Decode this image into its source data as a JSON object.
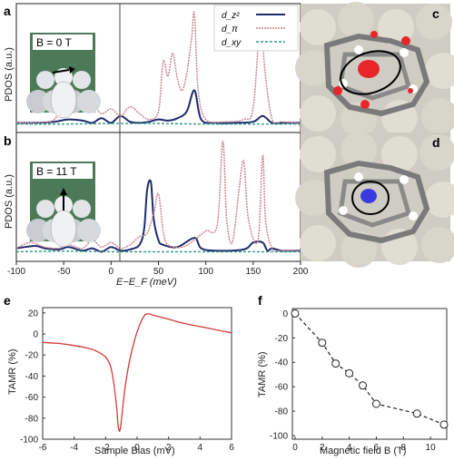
{
  "panel_labels": {
    "a": "a",
    "b": "b",
    "c": "c",
    "d": "d",
    "e": "e",
    "f": "f"
  },
  "colors": {
    "dz2": "#1f2a6e",
    "dpi": "#c8808a",
    "dxy": "#2a9a8a",
    "tamr_line": "#d23a3a",
    "spin_up": "#e8262a",
    "spin_down": "#3a3ae0",
    "inset_bg": "#4c7a58"
  },
  "icons": {
    "tip_inset": "stm-tip-icon",
    "molecule": "porphyrin-molecule-image"
  },
  "panel_a": {
    "field_label": "B = 0 T"
  },
  "panel_b": {
    "field_label": "B = 11 T"
  },
  "pdos": {
    "ylabel": "PDOS (a.u.)",
    "xlabel": "E−E_F (meV)",
    "xlim": [
      -100,
      200
    ],
    "xticks": [
      -100,
      -50,
      0,
      50,
      100,
      150,
      200
    ],
    "fermi_line_x": 38,
    "legend": [
      "d_z²",
      "d_π",
      "d_xy"
    ]
  },
  "chart_data": [
    {
      "type": "line",
      "panel": "a",
      "xlabel": "",
      "ylabel": "PDOS (a.u.)",
      "xlim": [
        -100,
        200
      ],
      "series": [
        {
          "name": "d_z²",
          "x": [
            -100,
            -80,
            -60,
            -45,
            -30,
            -20,
            -10,
            0,
            10,
            20,
            30,
            40,
            50,
            60,
            70,
            80,
            88,
            95,
            110,
            130,
            150,
            160,
            170,
            180,
            195,
            200
          ],
          "y": [
            0.02,
            0.02,
            0.03,
            0.05,
            0.04,
            0.02,
            0.06,
            0.02,
            0.08,
            0.03,
            0.02,
            0.03,
            0.05,
            0.04,
            0.06,
            0.12,
            0.3,
            0.05,
            0.02,
            0.02,
            0.03,
            0.08,
            0.02,
            0.02,
            0.02,
            0.02
          ]
        },
        {
          "name": "d_π",
          "x": [
            -100,
            -75,
            -60,
            -45,
            -30,
            -20,
            -10,
            0,
            10,
            20,
            30,
            40,
            50,
            55,
            60,
            65,
            70,
            75,
            80,
            85,
            88,
            92,
            100,
            120,
            140,
            150,
            158,
            162,
            170,
            180,
            195,
            200
          ],
          "y": [
            0.02,
            0.02,
            0.05,
            0.22,
            0.14,
            0.18,
            0.1,
            0.14,
            0.08,
            0.16,
            0.1,
            0.05,
            0.12,
            0.55,
            0.42,
            0.62,
            0.4,
            0.3,
            0.45,
            0.75,
            0.96,
            0.3,
            0.05,
            0.03,
            0.05,
            0.15,
            0.96,
            0.5,
            0.05,
            0.03,
            0.02,
            0.02
          ]
        },
        {
          "name": "d_xy",
          "x": [
            -100,
            -50,
            0,
            50,
            100,
            150,
            200
          ],
          "y": [
            0.01,
            0.01,
            0.015,
            0.015,
            0.01,
            0.01,
            0.01
          ]
        }
      ]
    },
    {
      "type": "line",
      "panel": "b",
      "xlabel": "E−E_F (meV)",
      "ylabel": "PDOS (a.u.)",
      "xlim": [
        -100,
        200
      ],
      "series": [
        {
          "name": "d_z²",
          "x": [
            -100,
            -80,
            -70,
            -55,
            -45,
            -30,
            -20,
            -10,
            0,
            10,
            20,
            30,
            35,
            38,
            42,
            45,
            50,
            55,
            70,
            88,
            95,
            110,
            140,
            150,
            160,
            165,
            170,
            180,
            200
          ],
          "y": [
            0.05,
            0.07,
            0.05,
            0.04,
            0.06,
            0.03,
            0.05,
            0.02,
            0.06,
            0.03,
            0.04,
            0.08,
            0.22,
            0.55,
            0.62,
            0.3,
            0.12,
            0.08,
            0.06,
            0.14,
            0.05,
            0.03,
            0.04,
            0.1,
            0.1,
            0.03,
            0.05,
            0.03,
            0.03
          ]
        },
        {
          "name": "d_π",
          "x": [
            -100,
            -85,
            -70,
            -55,
            -45,
            -30,
            -20,
            -10,
            0,
            10,
            20,
            30,
            38,
            45,
            50,
            55,
            60,
            75,
            88,
            100,
            112,
            118,
            122,
            128,
            135,
            140,
            145,
            155,
            160,
            163,
            170,
            180,
            200
          ],
          "y": [
            0.05,
            0.1,
            0.06,
            0.05,
            0.08,
            0.05,
            0.12,
            0.06,
            0.1,
            0.05,
            0.08,
            0.15,
            0.18,
            0.35,
            0.52,
            0.2,
            0.08,
            0.06,
            0.12,
            0.2,
            0.25,
            0.97,
            0.3,
            0.1,
            0.55,
            0.8,
            0.3,
            0.12,
            0.85,
            0.3,
            0.05,
            0.03,
            0.03
          ]
        },
        {
          "name": "d_xy",
          "x": [
            -100,
            -50,
            0,
            50,
            100,
            150,
            200
          ],
          "y": [
            0.02,
            0.025,
            0.02,
            0.02,
            0.02,
            0.02,
            0.02
          ]
        }
      ]
    },
    {
      "type": "line",
      "panel": "e",
      "xlabel": "Sample Bias (mV)",
      "ylabel": "TAMR (%)",
      "xlim": [
        -6,
        6
      ],
      "ylim": [
        -100,
        25
      ],
      "xticks": [
        -6,
        -4,
        -2,
        0,
        2,
        4,
        6
      ],
      "yticks": [
        20,
        0,
        -20,
        -40,
        -60,
        -80,
        -100
      ],
      "series": [
        {
          "name": "",
          "x": [
            -6,
            -5,
            -4,
            -3,
            -2.5,
            -2,
            -1.7,
            -1.5,
            -1.3,
            -1.2,
            -1.1,
            -1.0,
            -0.8,
            -0.6,
            -0.4,
            -0.2,
            0,
            0.2,
            0.4,
            0.6,
            0.8,
            1.0,
            1.5,
            2,
            3,
            4,
            5,
            6
          ],
          "y": [
            -8,
            -9,
            -11,
            -14,
            -17,
            -22,
            -30,
            -45,
            -70,
            -88,
            -92,
            -82,
            -55,
            -35,
            -20,
            -8,
            2,
            10,
            16,
            19,
            19,
            18,
            16,
            14,
            10,
            7,
            4,
            1
          ]
        }
      ]
    },
    {
      "type": "scatter",
      "panel": "f",
      "xlabel": "Magnetic field B (T)",
      "ylabel": "TAMR (%)",
      "xlim": [
        0,
        11
      ],
      "ylim": [
        -100,
        0
      ],
      "xticks": [
        0,
        2,
        4,
        6,
        8,
        10
      ],
      "yticks": [
        0,
        -20,
        -40,
        -60,
        -80,
        -100
      ],
      "series": [
        {
          "name": "",
          "x": [
            0,
            2,
            3,
            4,
            5,
            6,
            9,
            11
          ],
          "y": [
            0,
            -24,
            -41,
            -49,
            -59,
            -74,
            -82,
            -91
          ]
        }
      ]
    }
  ]
}
